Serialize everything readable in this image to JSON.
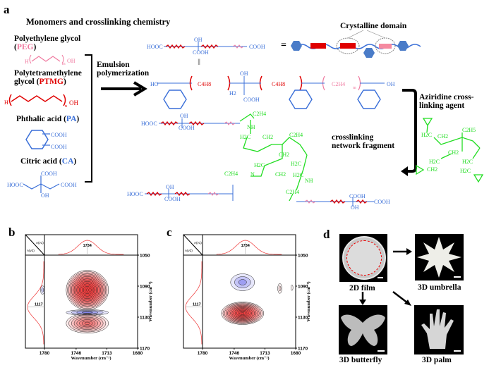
{
  "panel_a": {
    "letter": "a",
    "title": "Monomers and crosslinking chemistry",
    "monomers": [
      {
        "name": "Polyethylene glycol",
        "abbr_open": "(",
        "abbr": "PEG",
        "abbr_close": ")",
        "color": "#f07aa0"
      },
      {
        "name": "Polytetramethylene",
        "name2": "glycol (",
        "abbr": "PTMG",
        "abbr_close": ")",
        "color": "#e00000"
      },
      {
        "name": "Phthalic acid (",
        "abbr": "PA",
        "abbr_close": ")",
        "color": "#3a6fd8"
      },
      {
        "name": "Citric acid (",
        "abbr": "CA",
        "abbr_close": ")",
        "color": "#3a6fd8"
      }
    ],
    "chem": {
      "H": "H",
      "OH": "OH",
      "O": "O",
      "m": "m",
      "n": "n",
      "COOH": "COOH",
      "HOOC": "HOOC",
      "HO": "HO",
      "H2": "H2",
      "C4H8": "C4H8",
      "C2H4": "C2H4",
      "C2H5": "C2H5",
      "CH2": "CH2",
      "H2C": "H2C",
      "NH": "NH",
      "N": "N",
      "C": "C"
    },
    "process": [
      "Emulsion",
      "polymerization"
    ],
    "crystalline_domain": "Crystalline domain",
    "equals": "=",
    "network_fragment": [
      "crosslinking",
      "network fragment"
    ],
    "crosslinker": [
      "Aziridine cross-",
      "linking agent"
    ],
    "colors": {
      "pa_ca": "#3a6fd8",
      "ptmg": "#e00000",
      "peg": "#f07aa0",
      "aziridine": "#22dd22"
    }
  },
  "chart_data": [
    {
      "type": "heatmap",
      "panel": "b",
      "subtype": "2D correlation contour (synchronous)",
      "xlabel": "Wavenumber (cm⁻¹)",
      "ylabel": "Wavenumber (cm⁻¹)",
      "xticks": [
        "1780",
        "1746",
        "1713",
        "1680"
      ],
      "yticks": [
        "1050",
        "1090",
        "1130",
        "1170"
      ],
      "xlim": [
        1780,
        1680
      ],
      "ylim": [
        1050,
        1170
      ],
      "corner_labels": [
        "A(v1)",
        "A(v2)"
      ],
      "peak_top": "1734",
      "peak_left": "1117",
      "features": [
        {
          "sign": "positive",
          "x": 1734,
          "y": 1095
        },
        {
          "sign": "negative",
          "x": 1734,
          "y": 1124
        },
        {
          "sign": "positive",
          "x": 1734,
          "y": 1138
        },
        {
          "sign": "negative",
          "x": 1782,
          "y": 1095
        }
      ]
    },
    {
      "type": "heatmap",
      "panel": "c",
      "subtype": "2D correlation contour (asynchronous)",
      "xlabel": "Wavenumber (cm⁻¹)",
      "ylabel": "Wavenumber (cm⁻¹)",
      "xticks": [
        "1780",
        "1746",
        "1713",
        "1680"
      ],
      "yticks": [
        "1050",
        "1090",
        "1130",
        "1170"
      ],
      "xlim": [
        1780,
        1680
      ],
      "ylim": [
        1050,
        1170
      ],
      "corner_labels": [
        "A(v1)",
        "A(v2)"
      ],
      "peak_top": "1734",
      "peak_left": "1117",
      "features": [
        {
          "sign": "negative",
          "x": 1737,
          "y": 1085
        },
        {
          "sign": "positive",
          "x": 1737,
          "y": 1125
        },
        {
          "sign": "positive",
          "x": 1697,
          "y": 1093
        },
        {
          "sign": "positive",
          "x": 1684,
          "y": 1092
        }
      ]
    }
  ],
  "panel_b": {
    "letter": "b"
  },
  "panel_c": {
    "letter": "c"
  },
  "panel_d": {
    "letter": "d",
    "photos": [
      "2D film",
      "3D umbrella",
      "3D butterfly",
      "3D palm"
    ]
  }
}
